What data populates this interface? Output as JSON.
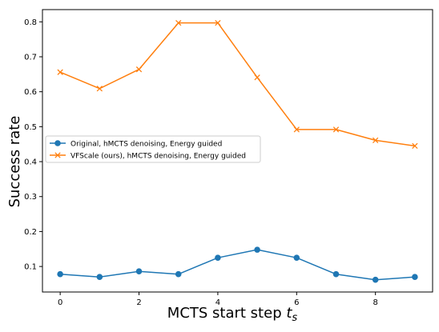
{
  "chart_data": {
    "type": "line",
    "title": "",
    "xlabel": "MCTS start step",
    "xlabel_symbol": "t",
    "xlabel_subscript": "s",
    "ylabel": "Success rate",
    "x": [
      0,
      1,
      2,
      3,
      4,
      5,
      6,
      7,
      8,
      9
    ],
    "xlim": [
      -0.45,
      9.45
    ],
    "ylim": [
      0.027,
      0.835
    ],
    "xticks": [
      0,
      2,
      4,
      6,
      8
    ],
    "xtick_labels": [
      "0",
      "2",
      "4",
      "6",
      "8"
    ],
    "yticks": [
      0.1,
      0.2,
      0.3,
      0.4,
      0.5,
      0.6,
      0.7,
      0.8
    ],
    "ytick_labels": [
      "0.1",
      "0.2",
      "0.3",
      "0.4",
      "0.5",
      "0.6",
      "0.7",
      "0.8"
    ],
    "grid": false,
    "legend_position": "center-left",
    "series": [
      {
        "name": "Original, hMCTS denoising, Energy guided",
        "color": "#1f77b4",
        "marker": "circle",
        "values": [
          0.078,
          0.07,
          0.086,
          0.078,
          0.125,
          0.148,
          0.125,
          0.078,
          0.062,
          0.07
        ]
      },
      {
        "name": "VFScale (ours), hMCTS denoising, Energy guided",
        "color": "#ff7f0e",
        "marker": "x",
        "values": [
          0.656,
          0.609,
          0.664,
          0.797,
          0.797,
          0.641,
          0.492,
          0.492,
          0.461,
          0.445
        ]
      }
    ]
  }
}
